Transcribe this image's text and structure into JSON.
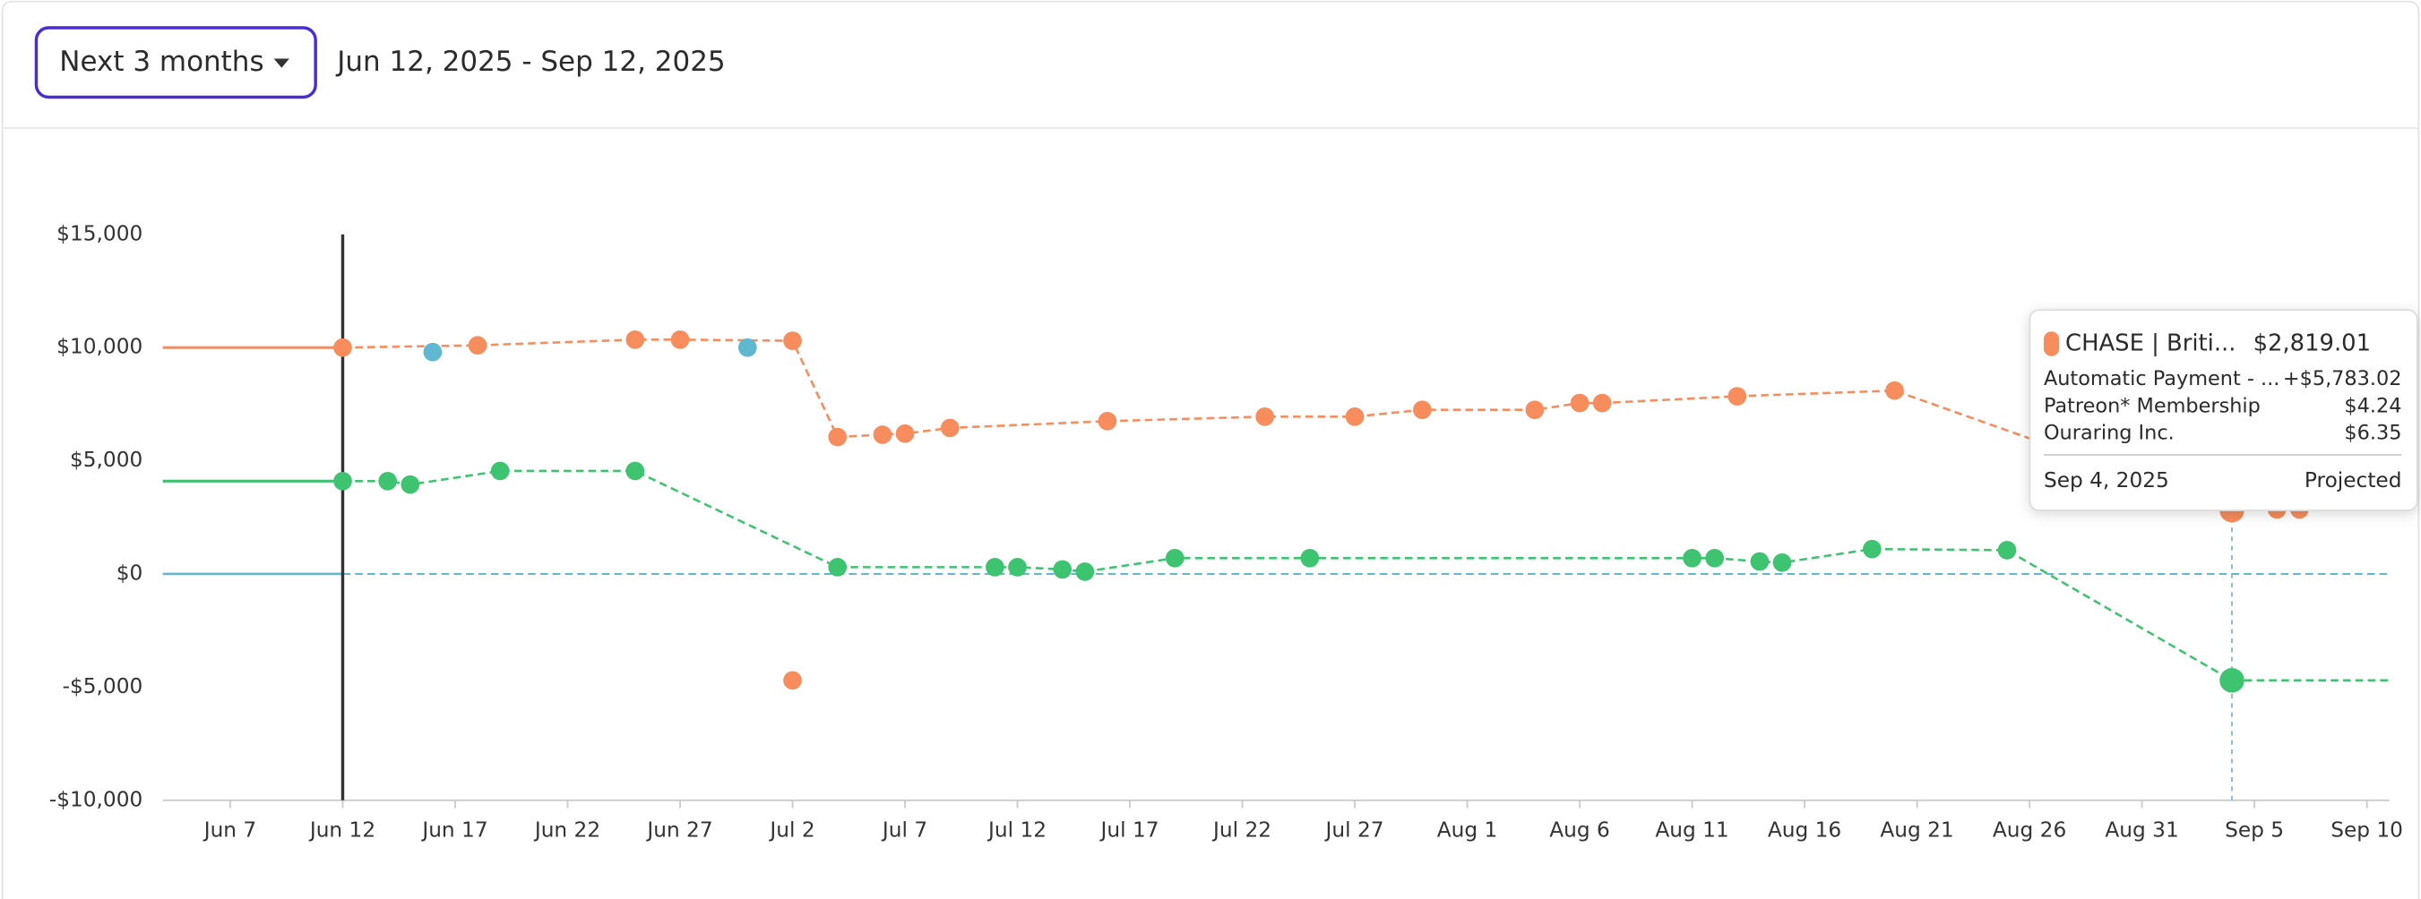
{
  "header": {
    "range_button": "Next 3 months",
    "date_range": "Jun 12, 2025 - Sep 12, 2025"
  },
  "chart_data": {
    "type": "line",
    "xlim": [
      "Jun 4",
      "Sep 11"
    ],
    "xticks": [
      "Jun 7",
      "Jun 12",
      "Jun 17",
      "Jun 22",
      "Jun 27",
      "Jul 2",
      "Jul 7",
      "Jul 12",
      "Jul 17",
      "Jul 22",
      "Jul 27",
      "Aug 1",
      "Aug 6",
      "Aug 11",
      "Aug 16",
      "Aug 21",
      "Aug 26",
      "Aug 31",
      "Sep 5",
      "Sep 10"
    ],
    "ylim": [
      -10000,
      15000
    ],
    "yticks": [
      {
        "value": -10000,
        "label": "-$10,000"
      },
      {
        "value": -5000,
        "label": "-$5,000"
      },
      {
        "value": 0,
        "label": "$0"
      },
      {
        "value": 5000,
        "label": "$5,000"
      },
      {
        "value": 10000,
        "label": "$10,000"
      },
      {
        "value": 15000,
        "label": "$15,000"
      }
    ],
    "today": "Jun 12",
    "cursor": "Sep 4",
    "baseline_color": "#5fb8cf",
    "series": [
      {
        "color": "#f78c5c",
        "mode": "line",
        "x": [
          "Jun 12",
          "Jun 18",
          "Jun 25",
          "Jun 27",
          "Jul 2",
          "Jul 4",
          "Jul 6",
          "Jul 7",
          "Jul 9",
          "Jul 16",
          "Jul 23",
          "Jul 27",
          "Jul 30",
          "Aug 4",
          "Aug 6",
          "Aug 7",
          "Aug 13",
          "Aug 20",
          "Sep 4",
          "Sep 6",
          "Sep 7"
        ],
        "values": [
          10000,
          10100,
          10350,
          10350,
          10300,
          6050,
          6150,
          6200,
          6450,
          6750,
          6950,
          6950,
          7250,
          7250,
          7550,
          7550,
          7850,
          8100,
          2819.01,
          2850,
          2850
        ]
      },
      {
        "color": "#3ec371",
        "mode": "line",
        "x": [
          "Jun 12",
          "Jun 14",
          "Jun 15",
          "Jun 19",
          "Jun 25",
          "Jul 4",
          "Jul 11",
          "Jul 12",
          "Jul 14",
          "Jul 15",
          "Jul 19",
          "Jul 25",
          "Aug 11",
          "Aug 12",
          "Aug 14",
          "Aug 15",
          "Aug 19",
          "Aug 25",
          "Sep 4"
        ],
        "values": [
          4100,
          4100,
          3950,
          4550,
          4550,
          300,
          300,
          300,
          200,
          100,
          700,
          700,
          700,
          700,
          550,
          500,
          1100,
          1050,
          -4700
        ]
      },
      {
        "color": "#5fb8cf",
        "mode": "markers",
        "x": [
          "Jun 16",
          "Jun 30"
        ],
        "values": [
          9800,
          10000
        ]
      },
      {
        "color": "#f78c5c",
        "mode": "markers",
        "x": [
          "Jul 2"
        ],
        "values": [
          -4700
        ]
      }
    ]
  },
  "tooltip": {
    "account": "CHASE | Briti...",
    "amount": "$2,819.01",
    "items": [
      {
        "label": "Automatic Payment - ...",
        "amount": "+$5,783.02"
      },
      {
        "label": "Patreon* Membership",
        "amount": "$4.24"
      },
      {
        "label": "Ouraring Inc.",
        "amount": "$6.35"
      }
    ],
    "date": "Sep 4, 2025",
    "status": "Projected"
  }
}
